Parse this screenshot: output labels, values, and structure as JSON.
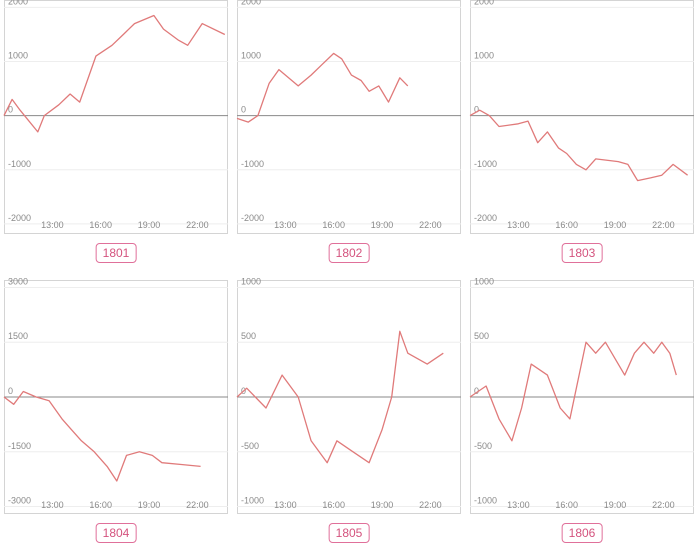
{
  "colors": {
    "line": "#e07a7a",
    "grid": "#eeeeee",
    "zero": "#8a8a8a",
    "border": "#d4d4d4",
    "label": "#d4537e"
  },
  "chart_data": [
    {
      "type": "line",
      "label": "1801",
      "yticks": [
        2000,
        1000,
        0,
        -1000,
        -2000
      ],
      "ylim": [
        -2150,
        2100
      ],
      "xticks": [
        "13:00",
        "16:00",
        "19:00",
        "22:00"
      ],
      "xlim": [
        10.0,
        23.9
      ],
      "x": [
        10.0,
        10.5,
        11.0,
        12.1,
        12.5,
        13.4,
        14.1,
        14.7,
        15.7,
        16.7,
        17.4,
        18.1,
        19.3,
        19.9,
        20.8,
        21.4,
        22.3,
        23.7
      ],
      "y": [
        0,
        300,
        100,
        -300,
        0,
        200,
        400,
        250,
        1100,
        1300,
        1500,
        1700,
        1850,
        1600,
        1400,
        1300,
        1700,
        1500
      ]
    },
    {
      "type": "line",
      "label": "1802",
      "yticks": [
        2000,
        1000,
        0,
        -1000,
        -2000
      ],
      "ylim": [
        -2150,
        2100
      ],
      "xticks": [
        "13:00",
        "16:00",
        "19:00",
        "22:00"
      ],
      "xlim": [
        10.0,
        23.9
      ],
      "x": [
        10.0,
        10.7,
        11.3,
        12.0,
        12.6,
        13.8,
        14.6,
        15.3,
        16.0,
        16.5,
        17.1,
        17.7,
        18.2,
        18.8,
        19.4,
        20.1,
        20.6
      ],
      "y": [
        -50,
        -120,
        0,
        600,
        850,
        550,
        750,
        950,
        1150,
        1050,
        750,
        650,
        450,
        550,
        250,
        700,
        550
      ]
    },
    {
      "type": "line",
      "label": "1803",
      "yticks": [
        2000,
        1000,
        0,
        -1000,
        -2000
      ],
      "ylim": [
        -2150,
        2100
      ],
      "xticks": [
        "13:00",
        "16:00",
        "19:00",
        "22:00"
      ],
      "xlim": [
        10.0,
        23.9
      ],
      "x": [
        10.0,
        10.6,
        11.2,
        11.8,
        13.0,
        13.6,
        14.2,
        14.8,
        15.5,
        16.0,
        16.6,
        17.2,
        17.8,
        19.2,
        19.8,
        20.4,
        21.2,
        21.9,
        22.6,
        23.5
      ],
      "y": [
        0,
        100,
        0,
        -200,
        -150,
        -100,
        -500,
        -300,
        -600,
        -700,
        -900,
        -1000,
        -800,
        -850,
        -900,
        -1200,
        -1150,
        -1100,
        -900,
        -1100
      ]
    },
    {
      "type": "line",
      "label": "1804",
      "yticks": [
        3000,
        1500,
        0,
        -1500,
        -3000
      ],
      "ylim": [
        -3150,
        3150
      ],
      "xticks": [
        "13:00",
        "16:00",
        "19:00",
        "22:00"
      ],
      "xlim": [
        10.0,
        23.9
      ],
      "x": [
        10.0,
        10.6,
        11.2,
        12.0,
        12.8,
        13.6,
        14.2,
        14.8,
        15.6,
        16.4,
        17.0,
        17.6,
        18.4,
        19.2,
        19.8,
        21.0,
        22.2
      ],
      "y": [
        0,
        -200,
        150,
        0,
        -100,
        -600,
        -900,
        -1200,
        -1500,
        -1900,
        -2300,
        -1600,
        -1500,
        -1600,
        -1800,
        -1850,
        -1900
      ]
    },
    {
      "type": "line",
      "label": "1805",
      "yticks": [
        1000,
        500,
        0,
        -500,
        -1000
      ],
      "ylim": [
        -1050,
        1050
      ],
      "xticks": [
        "13:00",
        "16:00",
        "19:00",
        "22:00"
      ],
      "xlim": [
        10.0,
        23.9
      ],
      "x": [
        10.0,
        10.6,
        11.8,
        12.8,
        13.8,
        14.6,
        15.6,
        16.2,
        17.2,
        18.2,
        19.0,
        19.6,
        20.1,
        20.6,
        21.8,
        22.8
      ],
      "y": [
        0,
        80,
        -100,
        200,
        0,
        -400,
        -600,
        -400,
        -500,
        -600,
        -300,
        0,
        600,
        400,
        300,
        400
      ]
    },
    {
      "type": "line",
      "label": "1806",
      "yticks": [
        1000,
        500,
        0,
        -500,
        -1000
      ],
      "ylim": [
        -1050,
        1050
      ],
      "xticks": [
        "13:00",
        "16:00",
        "19:00",
        "22:00"
      ],
      "xlim": [
        10.0,
        23.9
      ],
      "x": [
        10.0,
        11.0,
        11.8,
        12.6,
        13.2,
        13.8,
        14.8,
        15.6,
        16.2,
        17.2,
        17.8,
        18.4,
        19.6,
        20.2,
        20.8,
        21.4,
        21.9,
        22.4,
        22.8
      ],
      "y": [
        0,
        100,
        -200,
        -400,
        -100,
        300,
        200,
        -100,
        -200,
        500,
        400,
        500,
        200,
        400,
        500,
        400,
        500,
        400,
        200
      ]
    }
  ]
}
